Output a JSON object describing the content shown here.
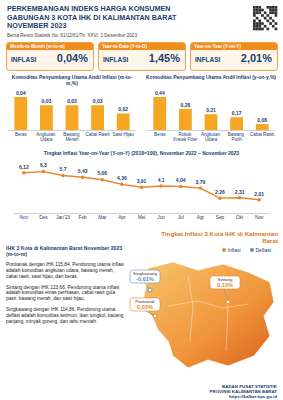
{
  "header": {
    "title": [
      "PERKEMBANGAN INDEKS HARGA KONSUMEN",
      "GABUNGAN 3 KOTA IHK DI KALIMANTAN BARAT",
      "NOVEMBER 2023"
    ],
    "subtitle": "Berita Resmi Statistik No. 61/12/61/Th. XXVI, 1 Desember 2023"
  },
  "summary": [
    {
      "period": "Month-to-Month (m-to-m)",
      "label": "INFLASI",
      "value": "0,04%"
    },
    {
      "period": "Year-to-Date (Y-to-D)",
      "label": "INFLASI",
      "value": "1,45%"
    },
    {
      "period": "Year-on-Year (Y-on-Y)",
      "label": "INFLASI",
      "value": "2,01%"
    }
  ],
  "chart_data": [
    {
      "type": "bar",
      "title": "Komoditas Penyumbang Utama Andil Inflasi (m-to-m,%)",
      "categories": [
        "Beras",
        "Angkutan Udara",
        "Bawang Merah",
        "Cabai Rawit",
        "Sawi Hijau"
      ],
      "values": [
        0.04,
        0.03,
        0.03,
        0.03,
        0.02
      ],
      "value_labels": [
        "0,04",
        "0,03",
        "0,03",
        "0,03",
        "0,02"
      ],
      "color": "#f5a623",
      "ylim": [
        0,
        0.04
      ],
      "data_labels": true,
      "tick_labels": "x"
    },
    {
      "type": "bar",
      "title": "Komoditas Penyumbang Utama Andil Inflasi (y-on-y,%)",
      "categories": [
        "Beras",
        "Rokok Kretek Filter",
        "Angkutan Udara",
        "Bawang Putih",
        "Cabai Rawit"
      ],
      "values": [
        0.44,
        0.28,
        0.21,
        0.17,
        0.08
      ],
      "value_labels": [
        "0,44",
        "0,28",
        "0,21",
        "0,17",
        "0,08"
      ],
      "color": "#f5a623",
      "ylim": [
        0,
        0.44
      ],
      "data_labels": true,
      "tick_labels": "x"
    },
    {
      "type": "line",
      "title": "Tingkat Inflasi Year-on-Year (Y-on-Y) (2018=100), November 2022 – November 2023",
      "categories": [
        "Nov",
        "Des",
        "Jan'23",
        "Feb",
        "Mar",
        "Apr",
        "Mei",
        "Jun",
        "Jul",
        "Agt",
        "Sep",
        "Okt",
        "Nov"
      ],
      "values": [
        6.12,
        6.3,
        5.7,
        5.43,
        5.06,
        4.36,
        3.91,
        4.1,
        4.04,
        3.79,
        2.26,
        2.31,
        2.01
      ],
      "value_labels": [
        "6,12",
        "6,3",
        "5,7",
        "5,43",
        "5,06",
        "4,36",
        "3,91",
        "4,1",
        "4,04",
        "3,79",
        "2,26",
        "2,31",
        "2,01"
      ],
      "color": "#e8862a",
      "marker": "circle",
      "ylim": [
        0,
        7
      ],
      "data_labels": true,
      "tick_labels": "x"
    }
  ],
  "map": {
    "title": "Tingkat Inflasi 3 Kota IHK di Kalimantan Barat",
    "legend": [
      "Inflasi",
      "Deflasi"
    ],
    "cities": [
      {
        "name": "Singkawang",
        "value": -0.01,
        "label": "-0,01%"
      },
      {
        "name": "Pontianak",
        "value": 0.03,
        "label": "0,03%"
      },
      {
        "name": "Sintang",
        "value": 0.13,
        "label": "0,13%"
      }
    ]
  },
  "notes": {
    "title": "IHK 3 Kota di Kalimantan Barat November 2023 (m-to-m)",
    "paragraphs": [
      "Pontianak dengan IHK 115,84. Pendorong utama inflasi adalah komoditas angkutan udara, bawang merah, cabai rawit, sawi hijau, dan beras.",
      "Sintang dengan IHK 123,66. Pendorong utama inflasi adalah komoditas emas perhiasan, cabai rawit gula pasir, bawang merah, dan sawi hijau.",
      "Singkawang dengan IHK 114,86. Pendorong utama deflasi adalah komoditas ketimun, ikan tongkol, kacang panjang, minyak goreng, dan tahu mentah."
    ]
  },
  "footer": {
    "org": "BADAN PUSAT STATISTIK",
    "region": "PROVINSI KALIMANTAN BARAT",
    "url": "https://kalbar.bps.go.id"
  }
}
